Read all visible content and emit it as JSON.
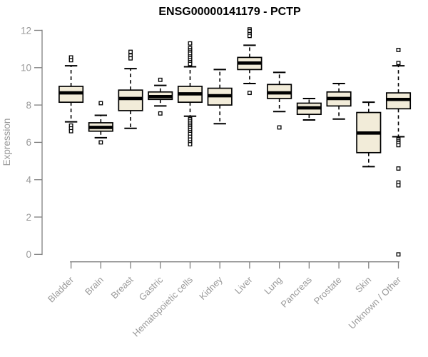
{
  "chart_data": {
    "type": "boxplot",
    "title": "ENSG00000141179 - PCTP",
    "ylabel": "Expression",
    "ylim": [
      0,
      12
    ],
    "yticks": [
      0,
      2,
      4,
      6,
      8,
      10,
      12
    ],
    "grid": false,
    "legend": "none",
    "colors": {
      "box_fill": "#F2ECD9",
      "box_stroke": "#000000",
      "median": "#000000",
      "whisker": "#000000",
      "axis": "#7f7f7f",
      "labels": "#9a9a9a",
      "title": "#000000",
      "background": "#ffffff"
    },
    "categories": [
      "Bladder",
      "Brain",
      "Breast",
      "Gastric",
      "Hematopoietic cells",
      "Kidney",
      "Liver",
      "Lung",
      "Pancreas",
      "Prostate",
      "Skin",
      "Unknown / Other"
    ],
    "boxes": [
      {
        "category": "Bladder",
        "whisker_low": 7.1,
        "q1": 8.15,
        "median": 8.65,
        "q3": 9.0,
        "whisker_high": 10.1,
        "outliers": [
          10.55,
          10.4,
          6.9,
          6.75,
          6.6
        ]
      },
      {
        "category": "Brain",
        "whisker_low": 6.25,
        "q1": 6.6,
        "median": 6.8,
        "q3": 7.05,
        "whisker_high": 7.45,
        "outliers": [
          8.1,
          6.0
        ]
      },
      {
        "category": "Breast",
        "whisker_low": 6.75,
        "q1": 7.7,
        "median": 8.35,
        "q3": 8.8,
        "whisker_high": 9.95,
        "outliers": [
          10.85,
          10.65,
          10.5
        ]
      },
      {
        "category": "Gastric",
        "whisker_low": 7.95,
        "q1": 8.3,
        "median": 8.45,
        "q3": 8.7,
        "whisker_high": 9.05,
        "outliers": [
          9.35,
          7.55
        ]
      },
      {
        "category": "Hematopoietic cells",
        "whisker_low": 7.4,
        "q1": 8.15,
        "median": 8.6,
        "q3": 9.0,
        "whisker_high": 10.05,
        "outliers": [
          11.3,
          11.05,
          10.95,
          10.85,
          10.75,
          10.6,
          10.5,
          10.4,
          10.3,
          10.2,
          7.25,
          7.15,
          7.05,
          6.95,
          6.85,
          6.75,
          6.65,
          6.55,
          6.45,
          6.3,
          6.15,
          6.0,
          5.9
        ]
      },
      {
        "category": "Kidney",
        "whisker_low": 7.0,
        "q1": 8.0,
        "median": 8.5,
        "q3": 8.9,
        "whisker_high": 9.9,
        "outliers": []
      },
      {
        "category": "Liver",
        "whisker_low": 9.15,
        "q1": 9.9,
        "median": 10.25,
        "q3": 10.55,
        "whisker_high": 11.2,
        "outliers": [
          12.05,
          11.95,
          11.8,
          11.7,
          8.65
        ]
      },
      {
        "category": "Lung",
        "whisker_low": 7.65,
        "q1": 8.35,
        "median": 8.65,
        "q3": 9.1,
        "whisker_high": 9.75,
        "outliers": [
          6.8
        ]
      },
      {
        "category": "Pancreas",
        "whisker_low": 7.2,
        "q1": 7.5,
        "median": 7.85,
        "q3": 8.1,
        "whisker_high": 8.35,
        "outliers": []
      },
      {
        "category": "Prostate",
        "whisker_low": 7.25,
        "q1": 7.95,
        "median": 8.35,
        "q3": 8.7,
        "whisker_high": 9.15,
        "outliers": []
      },
      {
        "category": "Skin",
        "whisker_low": 4.7,
        "q1": 5.45,
        "median": 6.5,
        "q3": 7.6,
        "whisker_high": 8.15,
        "outliers": []
      },
      {
        "category": "Unknown / Other",
        "whisker_low": 6.3,
        "q1": 7.8,
        "median": 8.3,
        "q3": 8.65,
        "whisker_high": 10.1,
        "outliers": [
          10.95,
          10.25,
          6.15,
          6.05,
          5.95,
          5.85,
          4.6,
          3.85,
          3.7,
          0.0
        ]
      }
    ]
  }
}
